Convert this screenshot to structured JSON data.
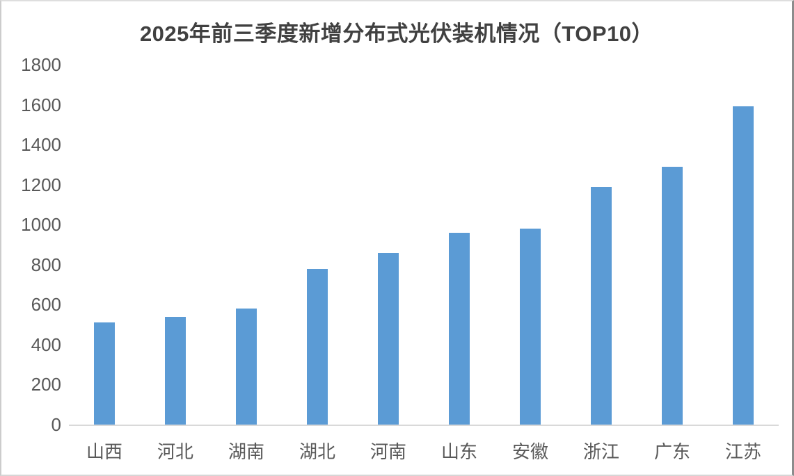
{
  "chart_data": {
    "type": "bar",
    "title": "2025年前三季度新增分布式光伏装机情况（TOP10）",
    "categories": [
      "山西",
      "河北",
      "湖南",
      "湖北",
      "河南",
      "山东",
      "安徽",
      "浙江",
      "广东",
      "江苏"
    ],
    "values": [
      510,
      540,
      580,
      780,
      860,
      960,
      980,
      1190,
      1290,
      1590
    ],
    "xlabel": "",
    "ylabel": "",
    "ylim": [
      0,
      1800
    ],
    "ytick_step": 200,
    "yticks": [
      0,
      200,
      400,
      600,
      800,
      1000,
      1200,
      1400,
      1600,
      1800
    ],
    "grid": false,
    "legend": null,
    "colors": {
      "bar": "#5B9BD5",
      "axis_line": "#D9D9D9",
      "tick_label": "#595959",
      "title": "#404040",
      "background": "#FFFFFF"
    }
  }
}
